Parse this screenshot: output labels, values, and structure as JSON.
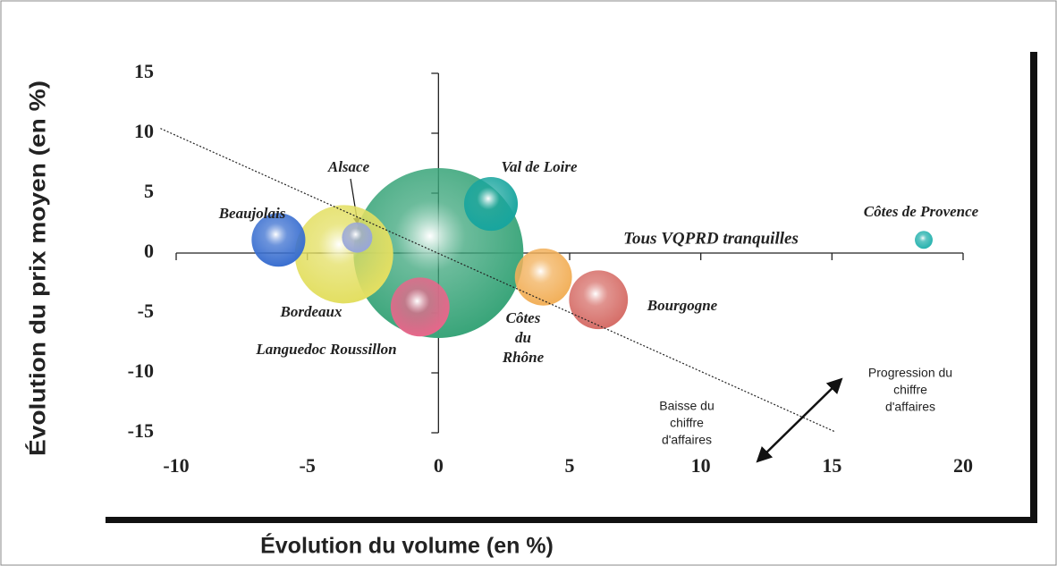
{
  "chart_data": {
    "type": "bubble",
    "x_label": "Évolution du volume (en %)",
    "y_label": "Évolution du prix moyen (en %)",
    "xlim": [
      -10,
      20
    ],
    "xticks": [
      -10,
      -5,
      0,
      5,
      10,
      15,
      20
    ],
    "ylim": [
      -15,
      15
    ],
    "yticks": [
      -15,
      -10,
      -5,
      0,
      5,
      10,
      15
    ],
    "points": [
      {
        "name": "Tous VQPRD tranquilles",
        "x": 0,
        "y": 0,
        "size": 100,
        "color": "#3aa57a"
      },
      {
        "name": "Bordeaux",
        "x": -3.6,
        "y": -0.1,
        "size": 33.5,
        "color": "#e3df62"
      },
      {
        "name": "Beaujolais",
        "x": -6.1,
        "y": 1.1,
        "size": 10,
        "color": "#3a6fd0"
      },
      {
        "name": "Alsace",
        "x": -3.1,
        "y": 1.3,
        "size": 3.2,
        "color": "#98a6d8"
      },
      {
        "name": "Val de Loire",
        "x": 2.0,
        "y": 4.1,
        "size": 10,
        "color": "#18a59e"
      },
      {
        "name": "Languedoc  Roussillon",
        "x": -0.7,
        "y": -4.5,
        "size": 12,
        "color": "#e6678a"
      },
      {
        "name": "Côtes du Rhône",
        "x": 4.0,
        "y": -2.0,
        "size": 11.3,
        "color": "#f2b05a"
      },
      {
        "name": "Bourgogne",
        "x": 6.1,
        "y": -3.9,
        "size": 12,
        "color": "#d66e68"
      },
      {
        "name": "Côtes de Provence",
        "x": 18.5,
        "y": 1.1,
        "size": 1.1,
        "color": "#26b2ae"
      }
    ],
    "trend_line": {
      "x": [
        -10.6,
        15.1
      ],
      "y": [
        10.4,
        -14.9
      ]
    },
    "annotations": [
      {
        "lines": [
          "Progression du",
          "chiffre",
          "d'affaires"
        ]
      },
      {
        "lines": [
          "Baisse du",
          "chiffre",
          "d'affaires"
        ]
      }
    ]
  }
}
